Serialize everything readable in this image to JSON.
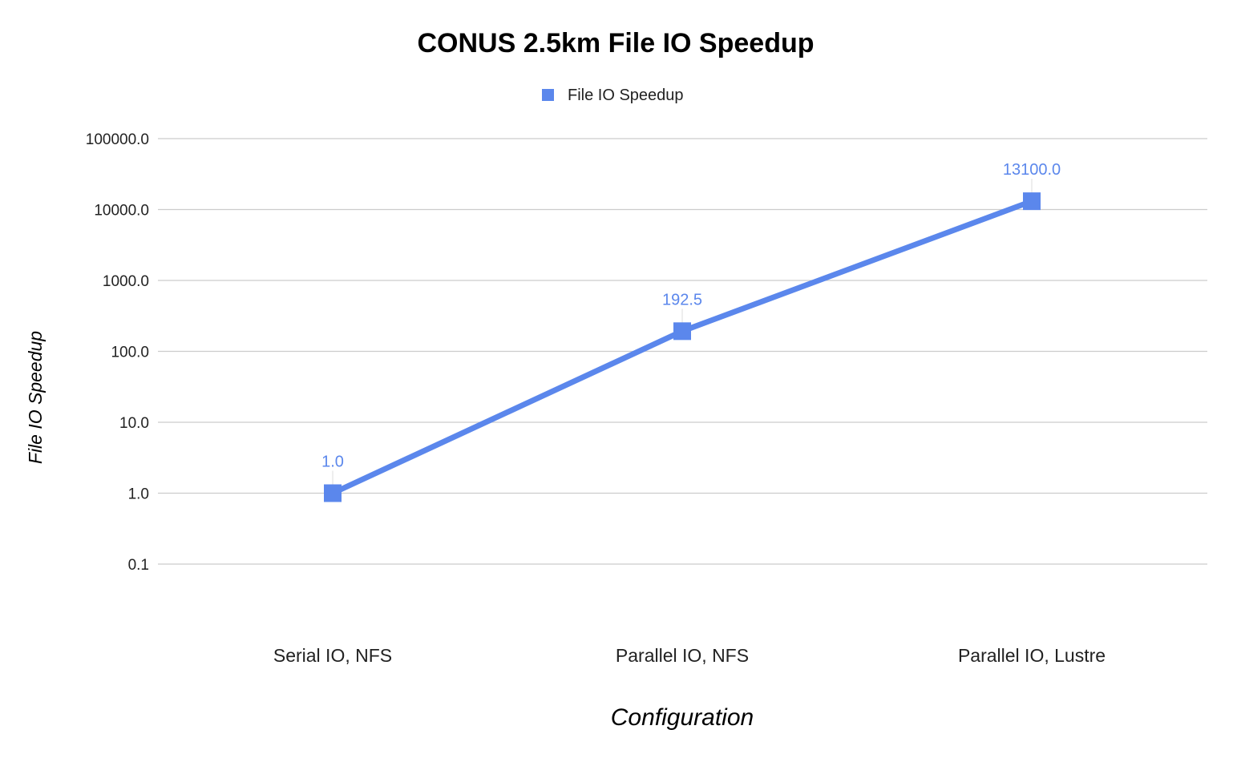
{
  "chart_data": {
    "type": "line",
    "title": "CONUS 2.5km File IO Speedup",
    "xlabel": "Configuration",
    "ylabel": "File IO Speedup",
    "y_scale": "log",
    "ylim": [
      0.1,
      100000.0
    ],
    "y_ticks": [
      {
        "value": 0.1,
        "label": "0.1"
      },
      {
        "value": 1.0,
        "label": "1.0"
      },
      {
        "value": 10.0,
        "label": "10.0"
      },
      {
        "value": 100.0,
        "label": "100.0"
      },
      {
        "value": 1000.0,
        "label": "1000.0"
      },
      {
        "value": 10000.0,
        "label": "10000.0"
      },
      {
        "value": 100000.0,
        "label": "100000.0"
      }
    ],
    "categories": [
      "Serial IO, NFS",
      "Parallel IO, NFS",
      "Parallel IO, Lustre"
    ],
    "series": [
      {
        "name": "File IO Speedup",
        "values": [
          1.0,
          192.5,
          13100.0
        ],
        "labels": [
          "1.0",
          "192.5",
          "13100.0"
        ],
        "color": "#5b87ec",
        "marker": "square"
      }
    ],
    "legend_position": "top",
    "grid": true
  }
}
